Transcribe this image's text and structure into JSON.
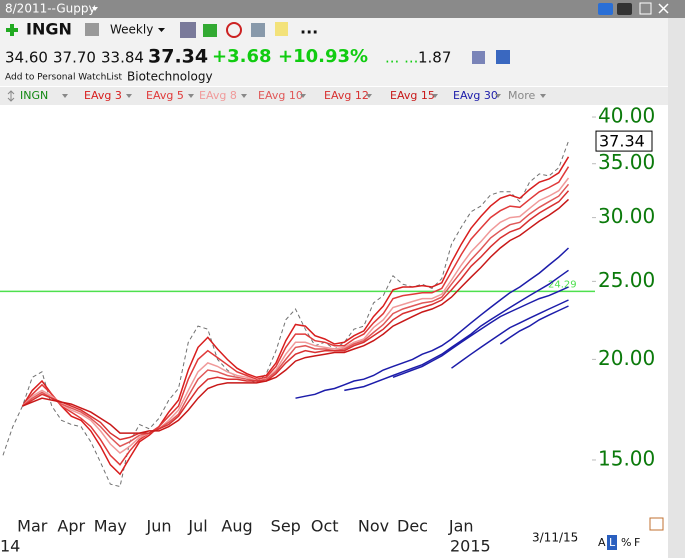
{
  "header": {
    "layout_name": "8/2011--Guppy",
    "symbol": "INGN",
    "period": "Weekly",
    "toolbar_more": "...",
    "open": "34.60",
    "high": "37.70",
    "low": "33.84",
    "last": "37.34",
    "change": "+3.68",
    "change_pct": "+10.93%",
    "dots": "... ...",
    "volume": "1.87",
    "watchlist": "Add to Personal WatchList",
    "industry": "Biotechnology"
  },
  "legend_more": "More",
  "footer": {
    "date": "3/11/15",
    "buttons": [
      "A",
      "L",
      "%",
      "F"
    ]
  },
  "chart_data": {
    "type": "line",
    "log_scale": true,
    "grid": false,
    "categories": [
      null,
      null,
      null,
      "Mar",
      null,
      null,
      null,
      "Apr",
      null,
      null,
      null,
      "May",
      null,
      null,
      null,
      null,
      "Jun",
      null,
      null,
      null,
      "Jul",
      null,
      null,
      null,
      "Aug",
      null,
      null,
      null,
      null,
      "Sep",
      null,
      null,
      null,
      "Oct",
      null,
      null,
      null,
      null,
      "Nov",
      null,
      null,
      null,
      "Dec",
      null,
      null,
      null,
      null,
      "Jan",
      null,
      null,
      null,
      null,
      null,
      null,
      null,
      null,
      null,
      null,
      null
    ],
    "year_labels": [
      "14",
      "2015"
    ],
    "ylim": [
      13,
      41.4
    ],
    "yticks": [
      {
        "value": 15,
        "label": "15.00"
      },
      {
        "value": 20,
        "label": "20.00"
      },
      {
        "value": 25,
        "label": "25.00"
      },
      {
        "value": 30,
        "label": "30.00"
      },
      {
        "value": 35,
        "label": "35.00"
      },
      {
        "value": 40,
        "label": "40.00"
      }
    ],
    "hline": {
      "value": 24.29,
      "color": "#4ee04e"
    },
    "series": [
      {
        "name": "INGN",
        "color": "#707070",
        "label_color": "#118811",
        "dashed": true,
        "values": [
          15.2,
          16.5,
          17.5,
          19.0,
          19.3,
          17.5,
          16.8,
          16.6,
          16.5,
          15.8,
          14.9,
          14.0,
          13.9,
          15.8,
          16.6,
          16.4,
          16.9,
          17.8,
          18.4,
          21.0,
          22.0,
          21.8,
          20.0,
          19.4,
          19.0,
          18.9,
          18.7,
          19.2,
          20.5,
          22.4,
          23.1,
          21.8,
          20.8,
          21.0,
          20.6,
          21.0,
          21.8,
          22.0,
          23.5,
          24.0,
          25.4,
          24.8,
          24.6,
          24.8,
          24.5,
          25.2,
          27.8,
          29.2,
          30.5,
          31.0,
          32.0,
          32.3,
          32.3,
          31.4,
          33.2,
          34.0,
          33.8,
          34.6,
          37.34
        ]
      },
      {
        "name": "EAvg 3",
        "color": "#d81e1e",
        "values": [
          null,
          null,
          17.5,
          18.3,
          18.8,
          18.1,
          17.5,
          17.0,
          16.8,
          16.3,
          15.6,
          14.8,
          14.4,
          15.1,
          15.8,
          16.1,
          16.5,
          17.2,
          17.8,
          19.4,
          20.7,
          21.3,
          20.6,
          20.0,
          19.5,
          19.2,
          19.0,
          19.1,
          19.8,
          21.1,
          22.1,
          22.0,
          21.4,
          21.2,
          20.9,
          21.0,
          21.4,
          21.7,
          22.6,
          23.3,
          24.4,
          24.6,
          24.6,
          24.7,
          24.6,
          24.9,
          26.4,
          27.8,
          29.1,
          30.1,
          31.0,
          31.7,
          32.0,
          31.7,
          32.5,
          33.2,
          33.5,
          34.1,
          35.7
        ]
      },
      {
        "name": "EAvg 5",
        "color": "#e03a3a",
        "values": [
          null,
          null,
          17.5,
          18.1,
          18.6,
          18.1,
          17.5,
          17.2,
          16.9,
          16.5,
          15.9,
          15.2,
          14.8,
          15.4,
          15.9,
          16.2,
          16.5,
          17.0,
          17.5,
          18.9,
          20.0,
          20.5,
          20.1,
          19.7,
          19.3,
          19.1,
          18.9,
          19.0,
          19.6,
          20.7,
          21.5,
          21.5,
          21.1,
          21.0,
          20.8,
          20.8,
          21.2,
          21.5,
          22.2,
          22.8,
          23.8,
          24.0,
          24.1,
          24.2,
          24.2,
          24.5,
          25.7,
          27.0,
          28.2,
          29.1,
          30.0,
          30.6,
          31.0,
          30.9,
          31.6,
          32.3,
          32.7,
          33.2,
          34.7
        ]
      },
      {
        "name": "EAvg 8",
        "color": "#f09a9a",
        "values": [
          null,
          null,
          17.5,
          18.0,
          18.3,
          18.0,
          17.6,
          17.3,
          17.1,
          16.8,
          16.3,
          15.7,
          15.3,
          15.6,
          16.0,
          16.2,
          16.4,
          16.8,
          17.3,
          18.3,
          19.3,
          19.8,
          19.6,
          19.3,
          19.1,
          19.0,
          18.8,
          18.9,
          19.4,
          20.3,
          21.0,
          21.0,
          20.8,
          20.7,
          20.6,
          20.7,
          21.0,
          21.2,
          21.9,
          22.4,
          23.2,
          23.4,
          23.6,
          23.8,
          23.8,
          24.1,
          25.1,
          26.2,
          27.2,
          28.0,
          28.9,
          29.6,
          30.0,
          30.1,
          30.8,
          31.5,
          31.9,
          32.4,
          33.6
        ]
      },
      {
        "name": "EAvg 10",
        "color": "#e05858",
        "values": [
          null,
          null,
          17.5,
          17.9,
          18.2,
          17.9,
          17.6,
          17.4,
          17.2,
          16.9,
          16.5,
          16.0,
          15.6,
          15.8,
          16.1,
          16.2,
          16.4,
          16.7,
          17.1,
          18.0,
          18.9,
          19.4,
          19.3,
          19.1,
          19.0,
          18.9,
          18.8,
          18.9,
          19.3,
          20.0,
          20.7,
          20.8,
          20.6,
          20.6,
          20.5,
          20.6,
          20.9,
          21.1,
          21.6,
          22.1,
          22.8,
          23.1,
          23.3,
          23.5,
          23.6,
          23.9,
          24.8,
          25.7,
          26.6,
          27.4,
          28.3,
          28.9,
          29.4,
          29.6,
          30.3,
          30.9,
          31.4,
          31.9,
          33.0
        ]
      },
      {
        "name": "EAvg 12",
        "color": "#d83030",
        "values": [
          null,
          null,
          17.5,
          17.8,
          18.1,
          17.9,
          17.7,
          17.5,
          17.3,
          17.0,
          16.7,
          16.2,
          15.9,
          16.0,
          16.2,
          16.2,
          16.4,
          16.6,
          17.0,
          17.7,
          18.4,
          18.9,
          19.0,
          18.9,
          18.9,
          18.8,
          18.8,
          18.8,
          19.2,
          19.8,
          20.3,
          20.5,
          20.4,
          20.5,
          20.5,
          20.5,
          20.8,
          21.0,
          21.4,
          21.8,
          22.4,
          22.8,
          23.0,
          23.2,
          23.4,
          23.7,
          24.4,
          25.2,
          26.1,
          26.8,
          27.6,
          28.3,
          28.8,
          29.1,
          29.8,
          30.4,
          30.9,
          31.4,
          32.4
        ]
      },
      {
        "name": "EAvg 15",
        "color": "#c81818",
        "values": [
          null,
          null,
          17.5,
          17.7,
          17.9,
          17.8,
          17.7,
          17.6,
          17.4,
          17.2,
          16.9,
          16.6,
          16.2,
          16.2,
          16.2,
          16.3,
          16.3,
          16.5,
          16.8,
          17.3,
          17.9,
          18.4,
          18.6,
          18.7,
          18.7,
          18.7,
          18.7,
          18.8,
          19.0,
          19.4,
          19.9,
          20.1,
          20.2,
          20.3,
          20.4,
          20.4,
          20.6,
          20.8,
          21.1,
          21.5,
          22.0,
          22.3,
          22.6,
          22.9,
          23.1,
          23.4,
          23.9,
          24.6,
          25.3,
          26.0,
          26.8,
          27.5,
          28.1,
          28.5,
          29.1,
          29.7,
          30.2,
          30.8,
          31.6
        ]
      },
      {
        "name": "EAvg 30",
        "color": "#1c1caa",
        "values": [
          null,
          null,
          null,
          null,
          null,
          null,
          null,
          null,
          null,
          null,
          null,
          null,
          null,
          null,
          null,
          null,
          null,
          null,
          null,
          null,
          null,
          null,
          null,
          null,
          null,
          null,
          null,
          null,
          null,
          null,
          17.9,
          18.0,
          18.1,
          18.3,
          18.4,
          18.6,
          18.8,
          18.9,
          19.1,
          19.4,
          19.6,
          19.8,
          20.0,
          20.3,
          20.5,
          20.8,
          21.2,
          21.7,
          22.2,
          22.7,
          23.2,
          23.7,
          24.2,
          24.6,
          25.1,
          25.6,
          26.2,
          26.8,
          27.5
        ]
      },
      {
        "color": "#1c1caa",
        "values": [
          null,
          null,
          null,
          null,
          null,
          null,
          null,
          null,
          null,
          null,
          null,
          null,
          null,
          null,
          null,
          null,
          null,
          null,
          null,
          null,
          null,
          null,
          null,
          null,
          null,
          null,
          null,
          null,
          null,
          null,
          null,
          null,
          null,
          null,
          null,
          18.3,
          18.4,
          18.5,
          18.7,
          18.9,
          19.1,
          19.3,
          19.5,
          19.7,
          20.0,
          20.3,
          20.7,
          21.1,
          21.5,
          22.0,
          22.4,
          22.8,
          23.2,
          23.6,
          24.0,
          24.4,
          24.8,
          25.3,
          25.8
        ]
      },
      {
        "color": "#1c1caa",
        "values": [
          null,
          null,
          null,
          null,
          null,
          null,
          null,
          null,
          null,
          null,
          null,
          null,
          null,
          null,
          null,
          null,
          null,
          null,
          null,
          null,
          null,
          null,
          null,
          null,
          null,
          null,
          null,
          null,
          null,
          null,
          null,
          null,
          null,
          null,
          null,
          null,
          null,
          null,
          null,
          null,
          19.0,
          19.2,
          19.4,
          19.6,
          19.9,
          20.2,
          20.6,
          21.0,
          21.4,
          21.8,
          22.2,
          22.6,
          22.9,
          23.2,
          23.5,
          23.8,
          24.0,
          24.3,
          24.6
        ]
      },
      {
        "color": "#1c1caa",
        "values": [
          null,
          null,
          null,
          null,
          null,
          null,
          null,
          null,
          null,
          null,
          null,
          null,
          null,
          null,
          null,
          null,
          null,
          null,
          null,
          null,
          null,
          null,
          null,
          null,
          null,
          null,
          null,
          null,
          null,
          null,
          null,
          null,
          null,
          null,
          null,
          null,
          null,
          null,
          null,
          null,
          null,
          null,
          null,
          null,
          null,
          null,
          19.5,
          19.9,
          20.3,
          20.7,
          21.1,
          21.5,
          21.9,
          22.2,
          22.5,
          22.8,
          23.1,
          23.4,
          23.7
        ]
      },
      {
        "color": "#1c1caa",
        "values": [
          null,
          null,
          null,
          null,
          null,
          null,
          null,
          null,
          null,
          null,
          null,
          null,
          null,
          null,
          null,
          null,
          null,
          null,
          null,
          null,
          null,
          null,
          null,
          null,
          null,
          null,
          null,
          null,
          null,
          null,
          null,
          null,
          null,
          null,
          null,
          null,
          null,
          null,
          null,
          null,
          null,
          null,
          null,
          null,
          null,
          null,
          null,
          null,
          null,
          null,
          null,
          20.9,
          21.3,
          21.7,
          22.0,
          22.4,
          22.7,
          23.0,
          23.3
        ]
      }
    ]
  }
}
